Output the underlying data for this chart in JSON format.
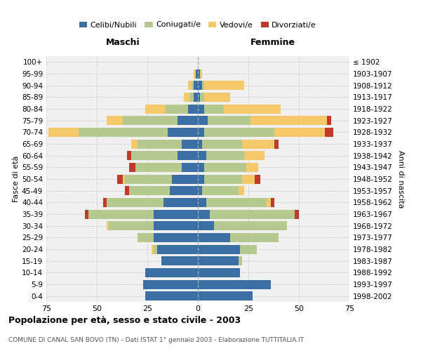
{
  "age_groups": [
    "0-4",
    "5-9",
    "10-14",
    "15-19",
    "20-24",
    "25-29",
    "30-34",
    "35-39",
    "40-44",
    "45-49",
    "50-54",
    "55-59",
    "60-64",
    "65-69",
    "70-74",
    "75-79",
    "80-84",
    "85-89",
    "90-94",
    "95-99",
    "100+"
  ],
  "birth_years": [
    "1998-2002",
    "1993-1997",
    "1988-1992",
    "1983-1987",
    "1978-1982",
    "1973-1977",
    "1968-1972",
    "1963-1967",
    "1958-1962",
    "1953-1957",
    "1948-1952",
    "1943-1947",
    "1938-1942",
    "1933-1937",
    "1928-1932",
    "1923-1927",
    "1918-1922",
    "1913-1917",
    "1908-1912",
    "1903-1907",
    "≤ 1902"
  ],
  "colors": {
    "celibe": "#3A6EA5",
    "coniugato": "#B5C98E",
    "vedovo": "#F5C96A",
    "divorziato": "#C0392B"
  },
  "maschi": {
    "celibe": [
      26,
      27,
      26,
      18,
      20,
      22,
      22,
      22,
      17,
      14,
      13,
      8,
      10,
      8,
      15,
      10,
      5,
      2,
      2,
      1,
      0
    ],
    "coniugato": [
      0,
      0,
      0,
      0,
      2,
      8,
      22,
      32,
      28,
      20,
      23,
      23,
      23,
      22,
      44,
      27,
      11,
      2,
      1,
      0,
      0
    ],
    "vedovo": [
      0,
      0,
      0,
      0,
      1,
      0,
      1,
      0,
      0,
      0,
      1,
      0,
      0,
      3,
      15,
      8,
      10,
      3,
      2,
      1,
      0
    ],
    "divorziato": [
      0,
      0,
      0,
      0,
      0,
      0,
      0,
      2,
      2,
      2,
      3,
      3,
      2,
      0,
      0,
      0,
      0,
      0,
      0,
      0,
      0
    ]
  },
  "femmine": {
    "nubile": [
      27,
      36,
      21,
      20,
      21,
      16,
      8,
      6,
      4,
      2,
      3,
      3,
      4,
      2,
      3,
      5,
      3,
      1,
      2,
      1,
      0
    ],
    "coniugata": [
      0,
      0,
      0,
      2,
      8,
      24,
      36,
      42,
      30,
      18,
      19,
      21,
      19,
      20,
      35,
      21,
      10,
      2,
      1,
      0,
      0
    ],
    "vedova": [
      0,
      0,
      0,
      0,
      0,
      0,
      0,
      0,
      2,
      3,
      6,
      6,
      10,
      16,
      25,
      38,
      28,
      13,
      20,
      1,
      0
    ],
    "divorziata": [
      0,
      0,
      0,
      0,
      0,
      0,
      0,
      2,
      2,
      0,
      3,
      0,
      0,
      2,
      4,
      2,
      0,
      0,
      0,
      0,
      0
    ]
  },
  "xlim": 75,
  "title": "Popolazione per età, sesso e stato civile - 2003",
  "subtitle": "COMUNE DI CANAL SAN BOVO (TN) - Dati ISTAT 1° gennaio 2003 - Elaborazione TUTTITALIA.IT",
  "ylabel_left": "Fasce di età",
  "ylabel_right": "Anni di nascita",
  "header_left": "Maschi",
  "header_right": "Femmine",
  "legend_labels": [
    "Celibi/Nubili",
    "Coniugati/e",
    "Vedovi/e",
    "Divorziati/e"
  ],
  "bg_color": "#f0f0f0"
}
